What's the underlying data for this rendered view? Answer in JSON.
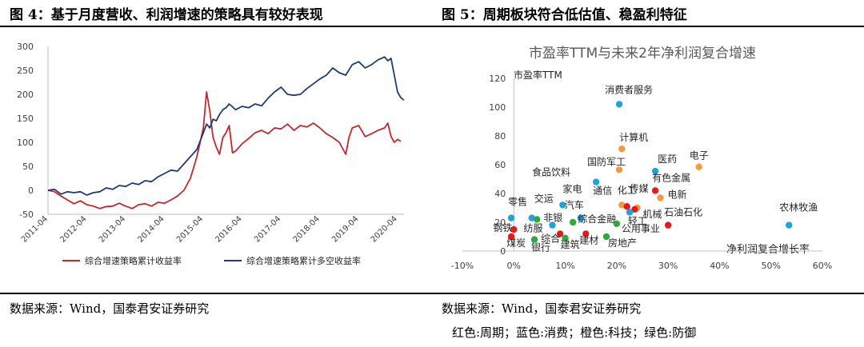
{
  "figures": {
    "left_title": "图 4：基于月度营收、利润增速的策略具有较好表现",
    "right_title": "图 5：周期板块符合低估值、稳盈利特征",
    "left_source": "数据来源：Wind，国泰君安证券研究",
    "right_source": "数据来源：Wind，国泰君安证券研究",
    "right_note": "红色:周期；蓝色:消费；橙色:科技；绿色:防御"
  },
  "colors": {
    "red_series": "#C0282C",
    "navy_series": "#1F3A7A",
    "cycle": "#E41A1C",
    "consumer": "#1FA3DB",
    "tech": "#F39A3C",
    "defense": "#2DAA3F"
  },
  "chart_data": [
    {
      "type": "line",
      "title": "",
      "xlabel": "",
      "ylabel": "",
      "ylim": [
        -50,
        300
      ],
      "yticks": [
        "300",
        "250",
        "200",
        "150",
        "100",
        "50",
        "0",
        "-50"
      ],
      "xticks": [
        "2011-04",
        "2012-04",
        "2013-04",
        "2014-04",
        "2015-04",
        "2016-04",
        "2017-04",
        "2018-04",
        "2019-04",
        "2020-04"
      ],
      "grid": false,
      "legend_position": "bottom",
      "series": [
        {
          "name": "综合增速策略累计收益率",
          "color": "red",
          "points": [
            [
              "2011-04",
              0
            ],
            [
              "2011-06",
              -3
            ],
            [
              "2011-08",
              -12
            ],
            [
              "2011-10",
              -20
            ],
            [
              "2011-12",
              -28
            ],
            [
              "2012-02",
              -22
            ],
            [
              "2012-04",
              -30
            ],
            [
              "2012-06",
              -33
            ],
            [
              "2012-08",
              -38
            ],
            [
              "2012-10",
              -34
            ],
            [
              "2012-12",
              -33
            ],
            [
              "2013-02",
              -27
            ],
            [
              "2013-04",
              -33
            ],
            [
              "2013-06",
              -38
            ],
            [
              "2013-08",
              -30
            ],
            [
              "2013-10",
              -28
            ],
            [
              "2013-12",
              -33
            ],
            [
              "2014-02",
              -25
            ],
            [
              "2014-04",
              -27
            ],
            [
              "2014-06",
              -20
            ],
            [
              "2014-08",
              -12
            ],
            [
              "2014-10",
              0
            ],
            [
              "2014-12",
              25
            ],
            [
              "2015-02",
              70
            ],
            [
              "2015-04",
              130
            ],
            [
              "2015-05",
              205
            ],
            [
              "2015-06",
              165
            ],
            [
              "2015-07",
              110
            ],
            [
              "2015-08",
              90
            ],
            [
              "2015-09",
              75
            ],
            [
              "2015-10",
              110
            ],
            [
              "2015-11",
              120
            ],
            [
              "2015-12",
              135
            ],
            [
              "2016-01",
              78
            ],
            [
              "2016-02",
              82
            ],
            [
              "2016-04",
              97
            ],
            [
              "2016-06",
              108
            ],
            [
              "2016-08",
              120
            ],
            [
              "2016-10",
              125
            ],
            [
              "2016-12",
              118
            ],
            [
              "2017-02",
              130
            ],
            [
              "2017-04",
              128
            ],
            [
              "2017-06",
              138
            ],
            [
              "2017-08",
              125
            ],
            [
              "2017-10",
              135
            ],
            [
              "2017-12",
              132
            ],
            [
              "2018-02",
              140
            ],
            [
              "2018-04",
              130
            ],
            [
              "2018-06",
              118
            ],
            [
              "2018-08",
              110
            ],
            [
              "2018-10",
              100
            ],
            [
              "2018-12",
              75
            ],
            [
              "2019-01",
              110
            ],
            [
              "2019-02",
              130
            ],
            [
              "2019-04",
              135
            ],
            [
              "2019-06",
              112
            ],
            [
              "2019-08",
              118
            ],
            [
              "2019-10",
              125
            ],
            [
              "2019-12",
              130
            ],
            [
              "2020-01",
              140
            ],
            [
              "2020-02",
              112
            ],
            [
              "2020-03",
              100
            ],
            [
              "2020-04",
              106
            ],
            [
              "2020-05",
              102
            ]
          ]
        },
        {
          "name": "综合增速策略累计多空收益率",
          "color": "navy",
          "points": [
            [
              "2011-04",
              0
            ],
            [
              "2011-06",
              2
            ],
            [
              "2011-08",
              -8
            ],
            [
              "2011-10",
              -3
            ],
            [
              "2011-12",
              -5
            ],
            [
              "2012-02",
              -3
            ],
            [
              "2012-04",
              -10
            ],
            [
              "2012-06",
              -5
            ],
            [
              "2012-08",
              -3
            ],
            [
              "2012-10",
              5
            ],
            [
              "2012-12",
              2
            ],
            [
              "2013-02",
              10
            ],
            [
              "2013-04",
              8
            ],
            [
              "2013-06",
              15
            ],
            [
              "2013-08",
              12
            ],
            [
              "2013-10",
              20
            ],
            [
              "2013-12",
              18
            ],
            [
              "2014-02",
              28
            ],
            [
              "2014-04",
              35
            ],
            [
              "2014-06",
              42
            ],
            [
              "2014-08",
              40
            ],
            [
              "2014-10",
              55
            ],
            [
              "2014-12",
              70
            ],
            [
              "2015-02",
              85
            ],
            [
              "2015-04",
              120
            ],
            [
              "2015-05",
              138
            ],
            [
              "2015-06",
              130
            ],
            [
              "2015-07",
              148
            ],
            [
              "2015-08",
              145
            ],
            [
              "2015-09",
              158
            ],
            [
              "2015-10",
              168
            ],
            [
              "2015-11",
              172
            ],
            [
              "2015-12",
              180
            ],
            [
              "2016-02",
              168
            ],
            [
              "2016-04",
              175
            ],
            [
              "2016-06",
              172
            ],
            [
              "2016-08",
              180
            ],
            [
              "2016-10",
              176
            ],
            [
              "2016-12",
              192
            ],
            [
              "2017-02",
              205
            ],
            [
              "2017-04",
              215
            ],
            [
              "2017-06",
              200
            ],
            [
              "2017-08",
              198
            ],
            [
              "2017-10",
              200
            ],
            [
              "2017-12",
              212
            ],
            [
              "2018-02",
              222
            ],
            [
              "2018-04",
              232
            ],
            [
              "2018-06",
              240
            ],
            [
              "2018-08",
              255
            ],
            [
              "2018-10",
              245
            ],
            [
              "2018-12",
              240
            ],
            [
              "2019-02",
              262
            ],
            [
              "2019-04",
              268
            ],
            [
              "2019-06",
              255
            ],
            [
              "2019-08",
              262
            ],
            [
              "2019-10",
              272
            ],
            [
              "2019-12",
              278
            ],
            [
              "2020-01",
              270
            ],
            [
              "2020-02",
              275
            ],
            [
              "2020-03",
              240
            ],
            [
              "2020-04",
              205
            ],
            [
              "2020-05",
              193
            ],
            [
              "2020-06",
              188
            ]
          ]
        }
      ]
    },
    {
      "type": "scatter",
      "title": "市盈率TTM与未来2年净利润复合增速",
      "xlabel": "净利润复合增长率",
      "ylabel": "市盈率TTM",
      "xlim": [
        -10,
        60
      ],
      "ylim": [
        0,
        120
      ],
      "xticks": [
        "-10%",
        "0%",
        "10%",
        "20%",
        "30%",
        "40%",
        "50%",
        "60%"
      ],
      "yticks": [
        "120",
        "100",
        "80",
        "60",
        "40",
        "20",
        "0"
      ],
      "grid": false,
      "legend_position": "none",
      "points": [
        {
          "label": "消费者服务",
          "x": 20.5,
          "y": 102,
          "group": "consumer",
          "lx": -18,
          "ly": -14
        },
        {
          "label": "计算机",
          "x": 21,
          "y": 71,
          "group": "tech",
          "lx": -3,
          "ly": -10
        },
        {
          "label": "电子",
          "x": 36,
          "y": 58.5,
          "group": "tech",
          "lx": -12,
          "ly": -10
        },
        {
          "label": "国防军工",
          "x": 20.5,
          "y": 56.5,
          "group": "tech",
          "lx": -40,
          "ly": -6
        },
        {
          "label": "医药",
          "x": 27.5,
          "y": 55.5,
          "group": "consumer",
          "lx": 3,
          "ly": -11
        },
        {
          "label": "食品饮料",
          "x": 16,
          "y": 48,
          "group": "consumer",
          "lx": -80,
          "ly": -8
        },
        {
          "label": "有色金属",
          "x": 27.5,
          "y": 42,
          "group": "cycle",
          "lx": -4,
          "ly": -12
        },
        {
          "label": "电新",
          "x": 28.5,
          "y": 37,
          "group": "tech",
          "lx": 9,
          "ly": 0
        },
        {
          "label": "家电",
          "x": 9.5,
          "y": 32,
          "group": "consumer",
          "lx": 0,
          "ly": -16
        },
        {
          "label": "通信",
          "x": 21,
          "y": 32,
          "group": "tech",
          "lx": -36,
          "ly": -14
        },
        {
          "label": "化工",
          "x": 22,
          "y": 31,
          "group": "cycle",
          "lx": -12,
          "ly": -16
        },
        {
          "label": "传媒",
          "x": 24,
          "y": 30,
          "group": "tech",
          "lx": -10,
          "ly": -20
        },
        {
          "label": "交运",
          "x": 3.5,
          "y": 23,
          "group": "consumer",
          "lx": 3,
          "ly": -20
        },
        {
          "label": "汽车",
          "x": 13,
          "y": 23,
          "group": "consumer",
          "lx": -20,
          "ly": -12
        },
        {
          "label": "零售",
          "x": -0.5,
          "y": 23,
          "group": "consumer",
          "lx": -4,
          "ly": -16
        },
        {
          "label": "非银",
          "x": 4.5,
          "y": 22,
          "group": "defense",
          "lx": 8,
          "ly": 2
        },
        {
          "label": "机械",
          "x": 23.5,
          "y": 29,
          "group": "cycle",
          "lx": 10,
          "ly": 10
        },
        {
          "label": "轻工",
          "x": 22.5,
          "y": 27,
          "group": "consumer",
          "lx": -2,
          "ly": 15
        },
        {
          "label": "石油石化",
          "x": 30,
          "y": 18,
          "group": "cycle",
          "lx": -5,
          "ly": -12
        },
        {
          "label": "钢铁",
          "x": 0,
          "y": 15,
          "group": "cycle",
          "lx": -26,
          "ly": 2
        },
        {
          "label": "纺服",
          "x": 7.5,
          "y": 18,
          "group": "consumer",
          "lx": -36,
          "ly": 8
        },
        {
          "label": "综合金融",
          "x": 11.5,
          "y": 20,
          "group": "defense",
          "lx": 6,
          "ly": 0
        },
        {
          "label": "公用事业",
          "x": 20,
          "y": 19,
          "group": "defense",
          "lx": 6,
          "ly": 10
        },
        {
          "label": "农林牧渔",
          "x": 53.5,
          "y": 18,
          "group": "consumer",
          "lx": -12,
          "ly": -18
        },
        {
          "label": "综合",
          "x": 9,
          "y": 12,
          "group": "cycle",
          "lx": -24,
          "ly": 10
        },
        {
          "label": "建材",
          "x": 14,
          "y": 12,
          "group": "cycle",
          "lx": -8,
          "ly": 12
        },
        {
          "label": "房地产",
          "x": 18,
          "y": 10,
          "group": "defense",
          "lx": 2,
          "ly": 12
        },
        {
          "label": "煤炭",
          "x": -0.5,
          "y": 10,
          "group": "cycle",
          "lx": -6,
          "ly": 12
        },
        {
          "label": "银行",
          "x": 4,
          "y": 8,
          "group": "defense",
          "lx": -4,
          "ly": 14
        },
        {
          "label": "建筑",
          "x": 10,
          "y": 9,
          "group": "defense",
          "lx": -6,
          "ly": 12
        }
      ]
    }
  ]
}
